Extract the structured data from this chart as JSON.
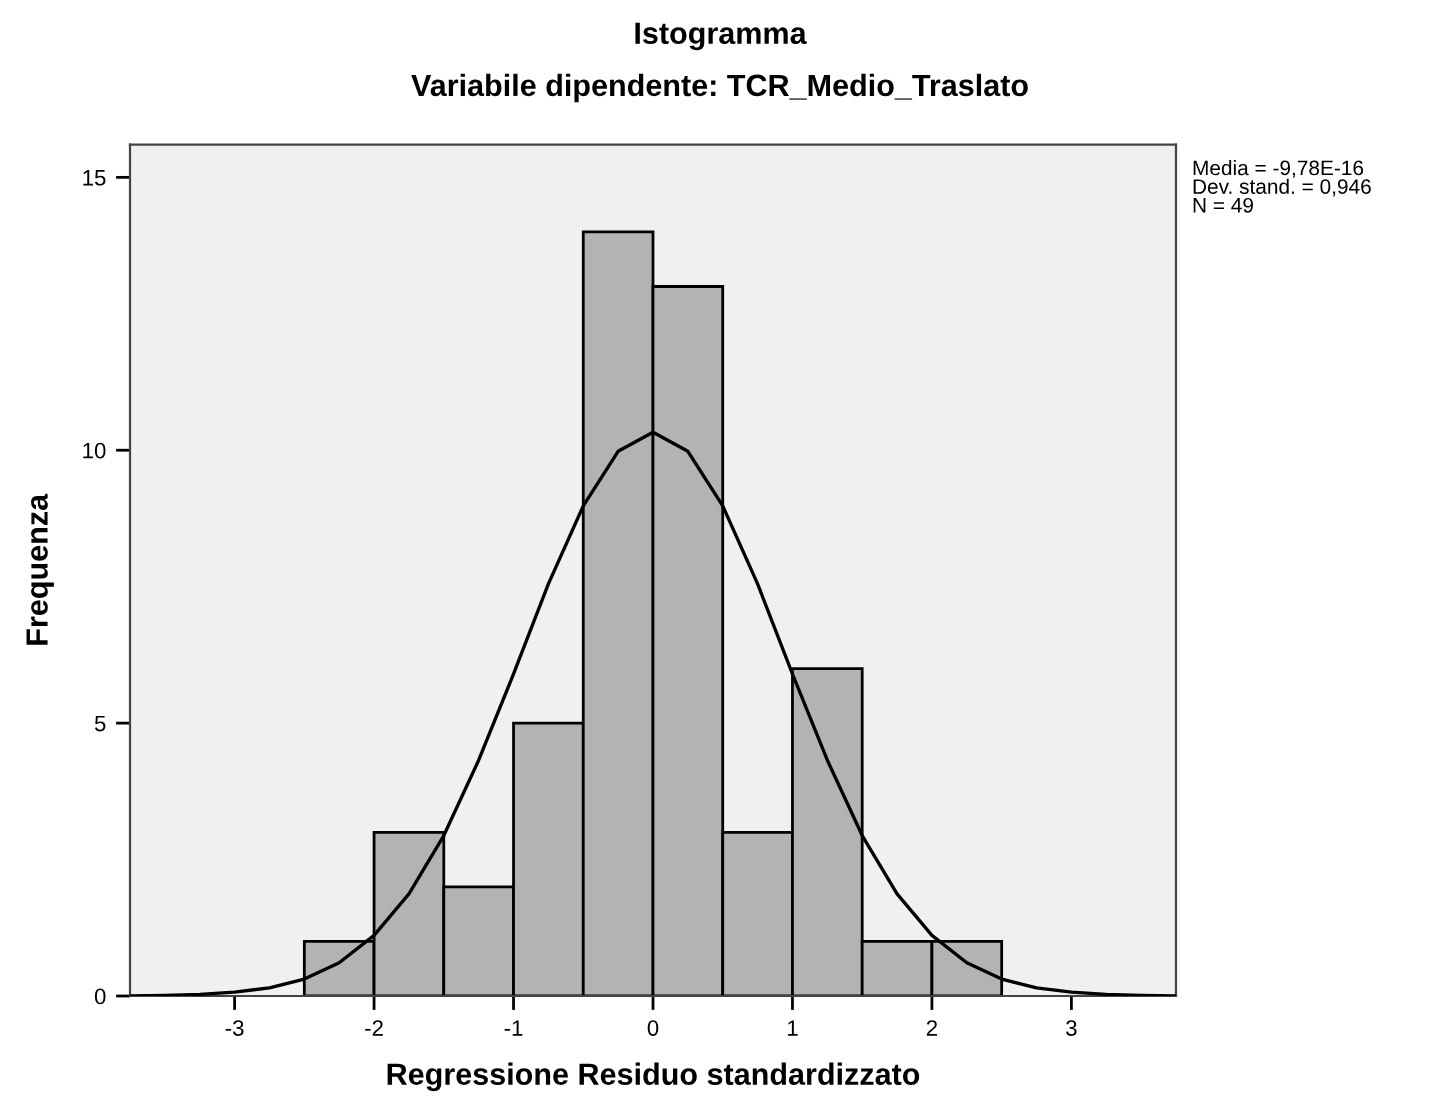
{
  "chart_data": {
    "type": "histogram",
    "title": "Istogramma",
    "subtitle": "Variabile dipendente: TCR_Medio_Traslato",
    "xlabel": "Regressione Residuo standardizzato",
    "ylabel": "Frequenza",
    "bins": [
      -2.5,
      -2.0,
      -1.5,
      -1.0,
      -0.5,
      0.0,
      0.5,
      1.0,
      1.5,
      2.0,
      2.5
    ],
    "values": [
      1,
      3,
      2,
      5,
      14,
      13,
      3,
      6,
      1,
      1
    ],
    "color": "#b3b3b3",
    "series": [
      {
        "type": "line",
        "color": "#000000",
        "x": [
          -3.75,
          -3.5,
          -3.25,
          -3.0,
          -2.75,
          -2.5,
          -2.25,
          -2.0,
          -1.75,
          -1.5,
          -1.25,
          -1.0,
          -0.75,
          -0.5,
          -0.25,
          0.0,
          0.25,
          0.5,
          0.75,
          1.0,
          1.25,
          1.5,
          1.75,
          2.0,
          2.25,
          2.5,
          2.75,
          3.0,
          3.25,
          3.5,
          3.75
        ],
        "values": [
          0.0,
          0.01,
          0.03,
          0.07,
          0.15,
          0.31,
          0.61,
          1.11,
          1.87,
          2.94,
          4.32,
          5.9,
          7.55,
          8.98,
          9.98,
          10.33,
          9.98,
          8.98,
          7.55,
          5.9,
          4.32,
          2.94,
          1.87,
          1.11,
          0.61,
          0.31,
          0.15,
          0.07,
          0.03,
          0.01,
          0.0
        ]
      }
    ],
    "annotations": [
      "Media = -9,78E-16\nDev. stand. = 0,946\nN = 49"
    ],
    "xlim": [
      -3.75,
      3.75
    ],
    "ylim": [
      0,
      15.6
    ],
    "xticks": [
      -3,
      -2,
      -1,
      0,
      1,
      2,
      3
    ],
    "yticks": [
      0,
      5,
      10,
      15
    ],
    "grid": false,
    "legend": false
  }
}
